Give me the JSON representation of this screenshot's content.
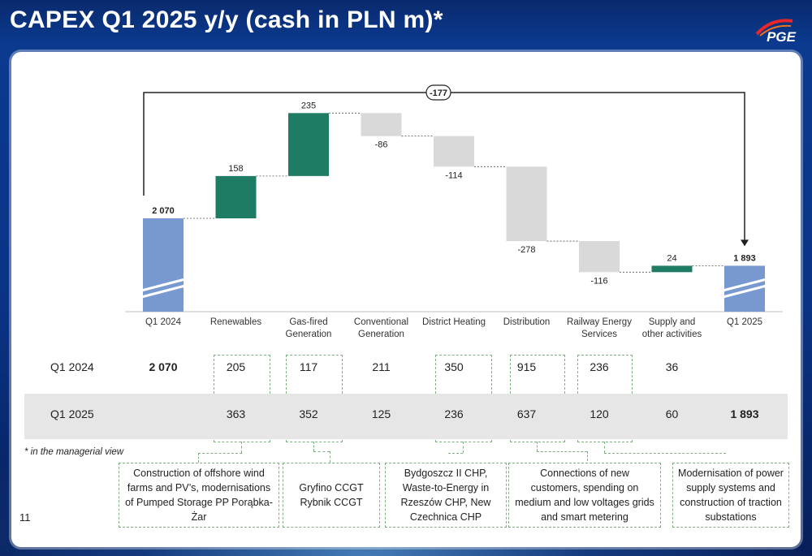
{
  "title": "CAPEX  Q1 2025 y/y (cash in PLN m)*",
  "logo_text": "PGE",
  "total_change_label": "-177",
  "chart_data": {
    "type": "waterfall",
    "categories": [
      "Q1 2024",
      "Renewables",
      "Gas-fired\nGeneration",
      "Conventional\nGeneration",
      "District Heating",
      "Distribution",
      "Railway Energy\nServices",
      "Supply and\nother activities",
      "Q1 2025"
    ],
    "values": [
      2070,
      158,
      235,
      -86,
      -114,
      -278,
      -116,
      24,
      1893
    ],
    "bar_labels": [
      "2 070",
      "158",
      "235",
      "-86",
      "-114",
      "-278",
      "-116",
      "24",
      "1 893"
    ],
    "kinds": [
      "total",
      "up",
      "up",
      "down",
      "down",
      "down",
      "down",
      "up",
      "total"
    ],
    "colors": {
      "total": "#7799d0",
      "up": "#1e7b64",
      "down": "#d9d9d9"
    }
  },
  "table": {
    "rows": [
      {
        "label": "Q1 2024",
        "cells": [
          "2 070",
          "205",
          "117",
          "211",
          "350",
          "915",
          "236",
          "36",
          ""
        ]
      },
      {
        "label": "Q1 2025",
        "cells": [
          "",
          "363",
          "352",
          "125",
          "236",
          "637",
          "120",
          "60",
          "1 893"
        ]
      }
    ]
  },
  "footnote": "* in the managerial view",
  "page_number": "11",
  "comments": [
    "Construction of offshore wind farms and PV’s, modernisations of Pumped Storage PP Porąbka-Żar",
    "Gryfino CCGT\nRybnik CCGT",
    "Bydgoszcz II CHP, Waste-to-Energy in Rzeszów CHP, New Czechnica CHP",
    "Connections of new customers, spending on medium and low voltages grids and smart metering",
    "Modernisation of power supply systems and construction of traction substations"
  ]
}
